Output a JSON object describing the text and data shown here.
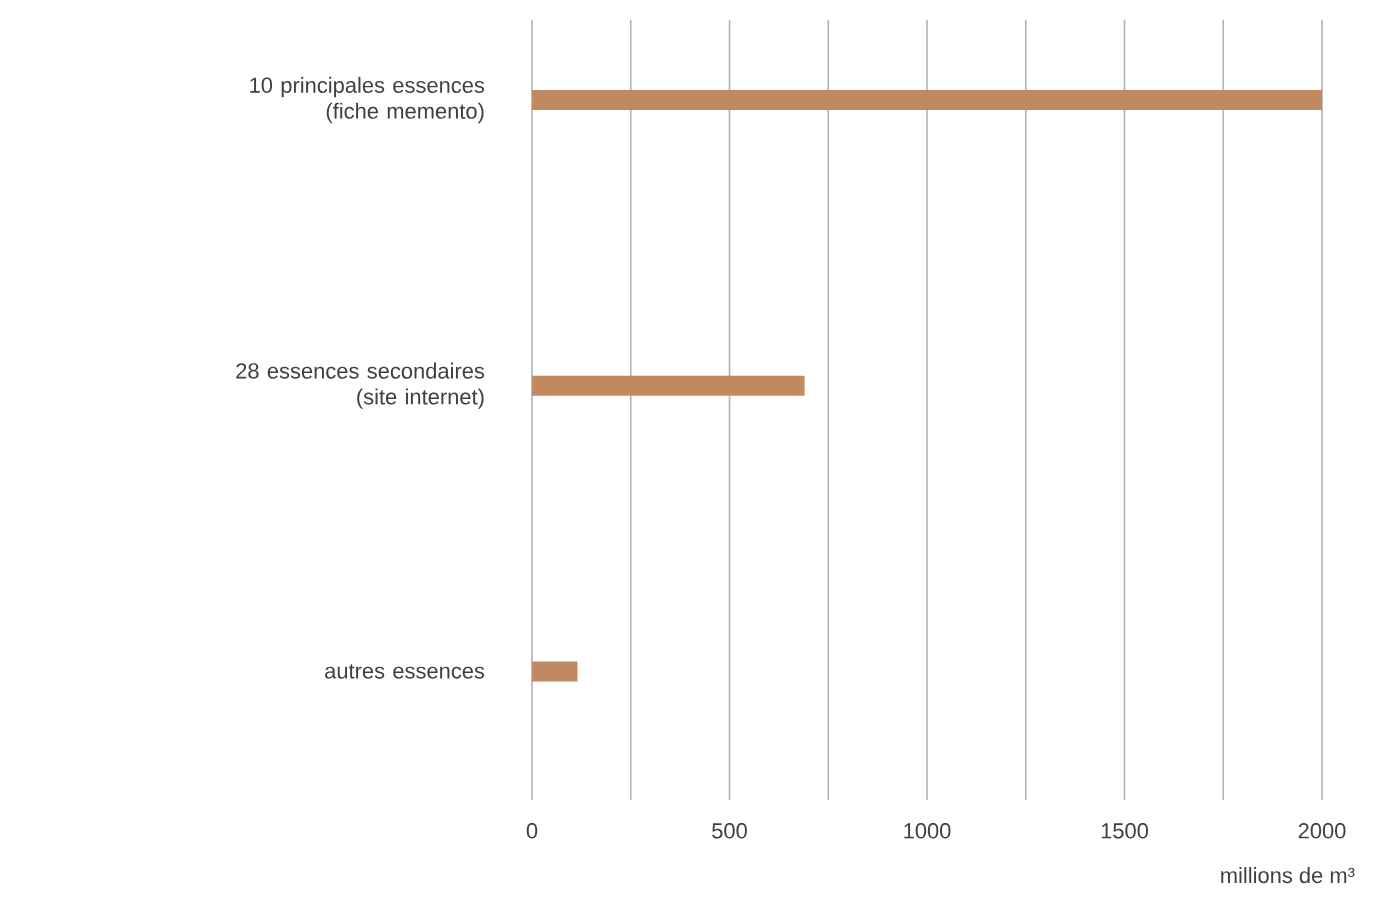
{
  "chart_data": {
    "type": "bar",
    "orientation": "horizontal",
    "categories": [
      "10 principales essences (fiche memento)",
      "28 essences secondaires (site internet)",
      "autres essences"
    ],
    "values": [
      2000,
      690,
      115
    ],
    "color": "#c0895f",
    "xlabel": "millions de m³",
    "xlim": [
      0,
      2000
    ],
    "xticks": [
      0,
      {
        "value": 250,
        "label": null
      },
      500,
      {
        "value": 750,
        "label": null
      },
      1000,
      {
        "value": 1250,
        "label": null
      },
      1500,
      {
        "value": 1750,
        "label": null
      },
      2000
    ],
    "grid": "x"
  }
}
